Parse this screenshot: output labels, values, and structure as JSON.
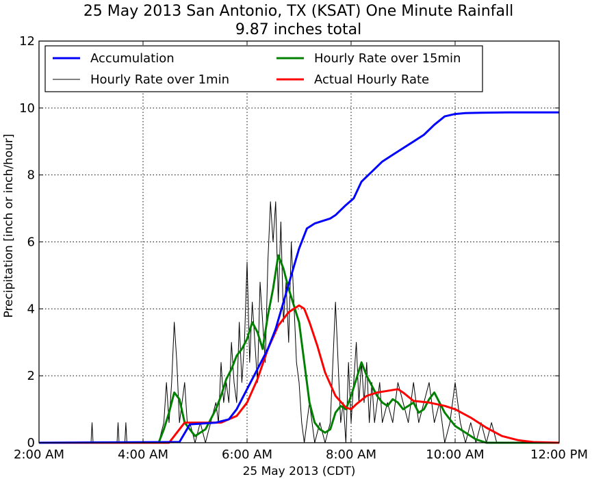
{
  "chart_data": {
    "type": "line",
    "title": "25 May 2013 San Antonio, TX (KSAT) One Minute Rainfall",
    "subtitle": "9.87 inches total",
    "xlabel": "25 May 2013 (CDT)",
    "ylabel": "Precipitation [inch or inch/hour]",
    "xlim": [
      2,
      12
    ],
    "ylim": [
      0,
      12
    ],
    "x_tick_values": [
      2,
      4,
      6,
      8,
      10,
      12
    ],
    "x_tick_labels": [
      "2:00 AM",
      "4:00 AM",
      "6:00 AM",
      "8:00 AM",
      "10:00 AM",
      "12:00 PM"
    ],
    "y_tick_values": [
      0,
      2,
      4,
      6,
      8,
      10,
      12
    ],
    "y_tick_labels": [
      "0",
      "2",
      "4",
      "6",
      "8",
      "10",
      "12"
    ],
    "grid": true,
    "legend_position": "top",
    "series": [
      {
        "name": "Accumulation",
        "color": "#0000ff",
        "width": 3,
        "x": [
          2.0,
          4.7,
          4.9,
          5.4,
          5.65,
          5.8,
          6.0,
          6.2,
          6.4,
          6.55,
          6.7,
          6.85,
          7.0,
          7.15,
          7.3,
          7.6,
          7.7,
          7.9,
          8.05,
          8.2,
          8.4,
          8.6,
          8.8,
          9.0,
          9.2,
          9.4,
          9.6,
          9.8,
          10.0,
          10.2,
          10.5,
          11.0,
          12.0
        ],
        "y": [
          0.0,
          0.02,
          0.55,
          0.6,
          0.7,
          1.0,
          1.6,
          2.2,
          2.8,
          3.4,
          4.2,
          5.0,
          5.8,
          6.4,
          6.55,
          6.7,
          6.8,
          7.1,
          7.3,
          7.8,
          8.1,
          8.4,
          8.6,
          8.8,
          9.0,
          9.2,
          9.5,
          9.75,
          9.82,
          9.85,
          9.86,
          9.87,
          9.87
        ]
      },
      {
        "name": "Hourly Rate over 1min",
        "color": "#000000",
        "width": 1,
        "x": [
          2.0,
          3.0,
          3.02,
          3.04,
          3.5,
          3.52,
          3.54,
          3.65,
          3.67,
          3.69,
          4.3,
          4.4,
          4.45,
          4.5,
          4.55,
          4.6,
          4.65,
          4.7,
          4.75,
          4.8,
          4.85,
          4.9,
          5.0,
          5.1,
          5.2,
          5.3,
          5.4,
          5.45,
          5.5,
          5.55,
          5.6,
          5.65,
          5.7,
          5.75,
          5.8,
          5.85,
          5.9,
          5.95,
          6.0,
          6.05,
          6.1,
          6.15,
          6.2,
          6.25,
          6.3,
          6.35,
          6.4,
          6.45,
          6.5,
          6.55,
          6.6,
          6.65,
          6.7,
          6.75,
          6.8,
          6.85,
          6.9,
          6.95,
          7.0,
          7.05,
          7.1,
          7.15,
          7.2,
          7.3,
          7.4,
          7.5,
          7.6,
          7.7,
          7.8,
          7.85,
          7.9,
          7.95,
          8.0,
          8.05,
          8.1,
          8.15,
          8.2,
          8.25,
          8.3,
          8.35,
          8.4,
          8.45,
          8.5,
          8.55,
          8.6,
          8.7,
          8.8,
          8.9,
          9.0,
          9.1,
          9.2,
          9.3,
          9.4,
          9.5,
          9.6,
          9.7,
          9.8,
          9.9,
          10.0,
          10.1,
          10.2,
          10.3,
          10.4,
          10.5,
          10.6,
          10.7,
          10.8,
          12.0
        ],
        "y": [
          0.0,
          0.0,
          0.6,
          0.0,
          0.0,
          0.6,
          0.0,
          0.0,
          0.6,
          0.0,
          0.0,
          0.6,
          1.8,
          0.6,
          1.8,
          3.6,
          2.4,
          0.6,
          1.2,
          1.8,
          0.6,
          0.6,
          0.0,
          0.6,
          0.0,
          0.6,
          1.2,
          0.6,
          2.4,
          1.2,
          1.8,
          1.2,
          3.0,
          1.8,
          1.2,
          3.6,
          1.8,
          3.0,
          5.4,
          2.4,
          4.2,
          3.0,
          1.8,
          4.8,
          3.6,
          2.4,
          5.4,
          7.2,
          6.0,
          7.2,
          4.2,
          6.6,
          3.6,
          4.8,
          3.0,
          6.0,
          4.2,
          2.4,
          1.8,
          0.6,
          0.0,
          0.6,
          1.2,
          0.0,
          0.6,
          0.0,
          0.6,
          4.2,
          0.6,
          1.2,
          0.0,
          2.4,
          0.6,
          1.8,
          3.0,
          1.2,
          2.4,
          1.2,
          2.4,
          0.6,
          1.8,
          0.6,
          1.2,
          1.8,
          0.6,
          1.2,
          0.6,
          1.8,
          1.2,
          0.6,
          1.8,
          0.6,
          1.2,
          1.8,
          0.6,
          1.2,
          0.0,
          0.6,
          1.8,
          0.6,
          0.0,
          0.6,
          0.0,
          0.6,
          0.0,
          0.6,
          0.0,
          0.0
        ]
      },
      {
        "name": "Hourly Rate over 15min",
        "color": "#008000",
        "width": 3,
        "x": [
          2.0,
          4.3,
          4.4,
          4.5,
          4.6,
          4.7,
          4.8,
          4.9,
          5.0,
          5.1,
          5.2,
          5.3,
          5.4,
          5.5,
          5.6,
          5.7,
          5.8,
          5.9,
          6.0,
          6.1,
          6.2,
          6.3,
          6.4,
          6.5,
          6.6,
          6.7,
          6.8,
          6.9,
          7.0,
          7.1,
          7.2,
          7.3,
          7.4,
          7.5,
          7.6,
          7.7,
          7.8,
          7.9,
          8.0,
          8.1,
          8.2,
          8.3,
          8.4,
          8.5,
          8.6,
          8.7,
          8.8,
          8.9,
          9.0,
          9.1,
          9.2,
          9.3,
          9.4,
          9.5,
          9.6,
          9.7,
          9.8,
          9.9,
          10.0,
          10.1,
          10.2,
          10.3,
          10.4,
          10.5,
          10.6,
          10.8,
          12.0
        ],
        "y": [
          0.0,
          0.0,
          0.4,
          0.9,
          1.5,
          1.3,
          0.6,
          0.4,
          0.2,
          0.3,
          0.4,
          0.7,
          1.0,
          1.4,
          1.9,
          2.2,
          2.6,
          2.8,
          3.1,
          3.6,
          3.3,
          2.8,
          3.8,
          4.6,
          5.6,
          5.2,
          4.6,
          4.1,
          3.6,
          2.4,
          1.2,
          0.6,
          0.4,
          0.3,
          0.4,
          0.9,
          1.1,
          1.0,
          1.4,
          1.9,
          2.4,
          2.0,
          1.7,
          1.4,
          1.2,
          1.1,
          1.3,
          1.2,
          1.0,
          1.1,
          1.2,
          0.9,
          1.0,
          1.3,
          1.5,
          1.2,
          0.9,
          0.7,
          0.5,
          0.4,
          0.3,
          0.2,
          0.1,
          0.05,
          0.0,
          0.0,
          0.0
        ]
      },
      {
        "name": "Actual Hourly Rate",
        "color": "#ff0000",
        "width": 3,
        "x": [
          2.0,
          4.5,
          4.8,
          5.2,
          5.5,
          5.8,
          6.0,
          6.2,
          6.4,
          6.6,
          6.8,
          7.0,
          7.1,
          7.2,
          7.35,
          7.5,
          7.7,
          7.9,
          8.0,
          8.1,
          8.3,
          8.5,
          8.7,
          8.9,
          9.0,
          9.2,
          9.5,
          9.8,
          10.0,
          10.3,
          10.6,
          10.9,
          11.2,
          11.5,
          12.0
        ],
        "y": [
          0.0,
          0.0,
          0.6,
          0.6,
          0.6,
          0.8,
          1.2,
          1.9,
          2.8,
          3.5,
          3.9,
          4.1,
          4.0,
          3.6,
          2.9,
          2.1,
          1.4,
          1.05,
          1.0,
          1.15,
          1.4,
          1.5,
          1.55,
          1.6,
          1.5,
          1.25,
          1.2,
          1.1,
          1.0,
          0.75,
          0.45,
          0.2,
          0.08,
          0.02,
          0.0
        ]
      }
    ]
  }
}
